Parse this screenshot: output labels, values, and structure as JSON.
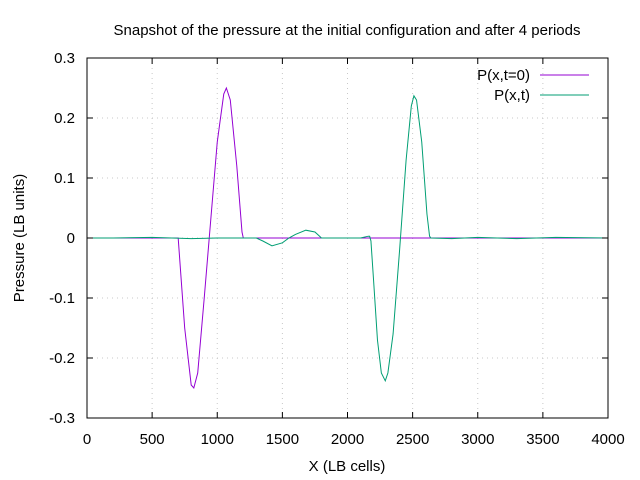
{
  "chart_data": {
    "type": "line",
    "title": "Snapshot of the pressure at the initial configuration and after 4 periods",
    "xlabel": "X (LB cells)",
    "ylabel": "Pressure (LB units)",
    "xlim": [
      0,
      4000
    ],
    "ylim": [
      -0.3,
      0.3
    ],
    "xticks": [
      0,
      500,
      1000,
      1500,
      2000,
      2500,
      3000,
      3500,
      4000
    ],
    "xtick_labels": [
      "0",
      "500",
      "1000",
      "1500",
      "2000",
      "2500",
      "3000",
      "3500",
      "4000"
    ],
    "yticks": [
      -0.3,
      -0.2,
      -0.1,
      0,
      0.1,
      0.2,
      0.3
    ],
    "ytick_labels": [
      "-0.3",
      "-0.2",
      "-0.1",
      "0",
      "0.1",
      "0.2",
      "0.3"
    ],
    "grid": true,
    "legend_position": "top-right",
    "series": [
      {
        "name": "P(x,t=0)",
        "color": "#9400d3",
        "x": [
          0,
          690,
          700,
          750,
          800,
          820,
          850,
          900,
          950,
          1000,
          1050,
          1070,
          1100,
          1150,
          1190,
          1200,
          1210,
          4000
        ],
        "y": [
          0,
          0,
          0,
          -0.15,
          -0.245,
          -0.25,
          -0.225,
          -0.1,
          0.03,
          0.16,
          0.24,
          0.25,
          0.23,
          0.12,
          0.01,
          0,
          0,
          0
        ]
      },
      {
        "name": "P(x,t)",
        "color": "#009e73",
        "x": [
          0,
          200,
          500,
          800,
          1000,
          1300,
          1350,
          1420,
          1500,
          1550,
          1600,
          1680,
          1750,
          1790,
          1800,
          2100,
          2160,
          2170,
          2180,
          2200,
          2230,
          2260,
          2290,
          2310,
          2350,
          2400,
          2450,
          2490,
          2510,
          2530,
          2570,
          2610,
          2630,
          2640,
          2800,
          3000,
          3300,
          3600,
          4000
        ],
        "y": [
          0,
          0,
          0.001,
          -0.001,
          0,
          0,
          -0.005,
          -0.013,
          -0.008,
          0,
          0.006,
          0.013,
          0.01,
          0.002,
          0,
          0,
          0.003,
          0.003,
          -0.005,
          -0.07,
          -0.17,
          -0.225,
          -0.238,
          -0.225,
          -0.16,
          -0.02,
          0.13,
          0.22,
          0.237,
          0.23,
          0.16,
          0.04,
          0.003,
          0,
          -0.001,
          0.001,
          -0.001,
          0.001,
          0
        ]
      }
    ]
  }
}
